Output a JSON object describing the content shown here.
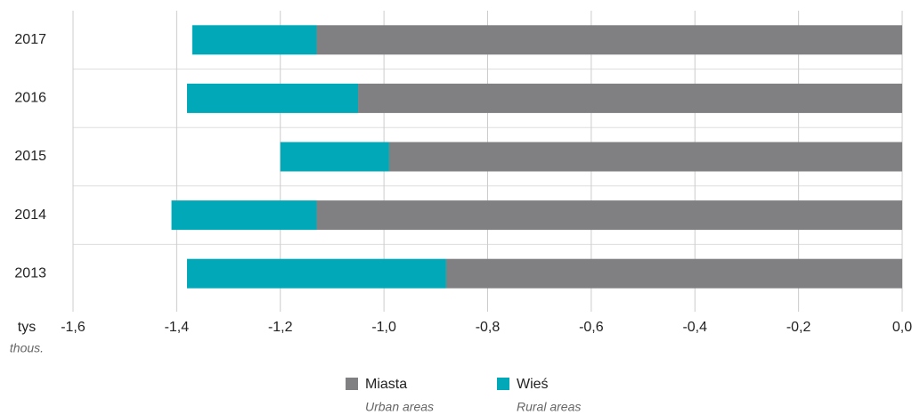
{
  "chart_data": {
    "type": "stacked_barh",
    "categories": [
      "2017",
      "2016",
      "2015",
      "2014",
      "2013"
    ],
    "series": [
      {
        "name": "Miasta",
        "subname": "Urban areas",
        "color": "#808083",
        "values": [
          -1.13,
          -1.05,
          -0.99,
          -1.13,
          -0.88
        ]
      },
      {
        "name": "Wieś",
        "subname": "Rural areas",
        "color": "#00a8b8",
        "values": [
          -0.24,
          -0.33,
          -0.21,
          -0.28,
          -0.5
        ]
      }
    ],
    "xlabel": "tys",
    "xlabel_sub": "thous.",
    "xlim": [
      -1.6,
      0
    ],
    "xticks": [
      {
        "value": -1.6,
        "label": "-1,6"
      },
      {
        "value": -1.4,
        "label": "-1,4"
      },
      {
        "value": -1.2,
        "label": "-1,2"
      },
      {
        "value": -1.0,
        "label": "-1,0"
      },
      {
        "value": -0.8,
        "label": "-0,8"
      },
      {
        "value": -0.6,
        "label": "-0,6"
      },
      {
        "value": -0.4,
        "label": "-0,4"
      },
      {
        "value": -0.2,
        "label": "-0,2"
      },
      {
        "value": 0,
        "label": "0,0"
      }
    ],
    "grid": true
  }
}
